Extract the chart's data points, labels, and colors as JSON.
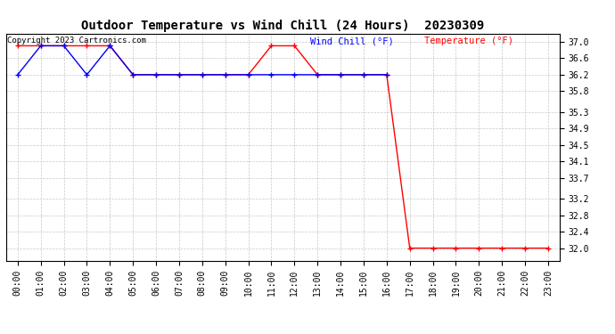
{
  "title": "Outdoor Temperature vs Wind Chill (24 Hours)  20230309",
  "copyright": "Copyright 2023 Cartronics.com",
  "legend_wind_chill": "Wind Chill (°F)",
  "legend_temperature": "Temperature (°F)",
  "x_ticks": [
    "00:00",
    "01:00",
    "02:00",
    "03:00",
    "04:00",
    "05:00",
    "06:00",
    "07:00",
    "08:00",
    "09:00",
    "10:00",
    "11:00",
    "12:00",
    "13:00",
    "14:00",
    "15:00",
    "16:00",
    "17:00",
    "18:00",
    "19:00",
    "20:00",
    "21:00",
    "22:00",
    "23:00"
  ],
  "y_ticks": [
    32.0,
    32.4,
    32.8,
    33.2,
    33.7,
    34.1,
    34.5,
    34.9,
    35.3,
    35.8,
    36.2,
    36.6,
    37.0
  ],
  "ylim": [
    31.7,
    37.2
  ],
  "temperature_x": [
    0,
    1,
    2,
    3,
    4,
    5,
    6,
    7,
    8,
    9,
    10,
    11,
    12,
    13,
    14,
    15,
    16,
    17,
    18,
    19,
    20,
    21,
    22,
    23
  ],
  "temperature_y": [
    36.9,
    36.9,
    36.9,
    36.9,
    36.9,
    36.2,
    36.2,
    36.2,
    36.2,
    36.2,
    36.2,
    36.9,
    36.9,
    36.2,
    36.2,
    36.2,
    36.2,
    32.0,
    32.0,
    32.0,
    32.0,
    32.0,
    32.0,
    32.0
  ],
  "wind_chill_x": [
    0,
    1,
    2,
    3,
    4,
    5,
    6,
    7,
    8,
    9,
    10,
    11,
    12,
    13,
    14,
    15,
    16
  ],
  "wind_chill_y": [
    36.2,
    36.9,
    36.9,
    36.2,
    36.9,
    36.2,
    36.2,
    36.2,
    36.2,
    36.2,
    36.2,
    36.2,
    36.2,
    36.2,
    36.2,
    36.2,
    36.2
  ],
  "temperature_color": "#ff0000",
  "wind_chill_color": "#0000ff",
  "background_color": "#ffffff",
  "grid_color": "#c8c8c8",
  "title_fontsize": 10,
  "legend_fontsize": 7.5,
  "tick_fontsize": 7,
  "copyright_fontsize": 6.5
}
